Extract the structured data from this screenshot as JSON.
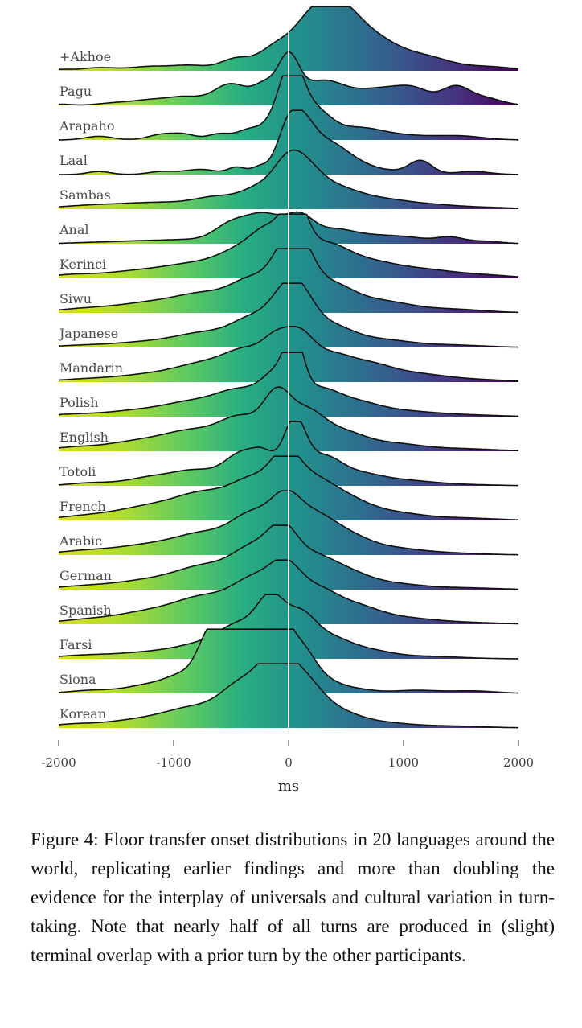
{
  "chart_data": {
    "type": "ridgeline",
    "xlabel": "ms",
    "xlim": [
      -2000,
      2000
    ],
    "xticks": [
      -2000,
      -1000,
      0,
      1000,
      2000
    ],
    "xtick_labels": [
      "-2000",
      "-1000",
      "0",
      "1000",
      "2000"
    ],
    "reference_line_x": 0,
    "fill_colormap": "viridis (x: -2000 yellow to 2000 dark purple)",
    "colors": {
      "yellow": "#d8e219",
      "green": "#35b779",
      "teal": "#31688e",
      "purple": "#440154",
      "outline": "#111111",
      "zero_line": "#e6e6e6"
    },
    "series": [
      {
        "name": "+Akhoe",
        "peaks": [
          [
            -2000,
            0.02,
            100
          ],
          [
            -1650,
            0.05,
            150
          ],
          [
            -1200,
            0.07,
            180
          ],
          [
            -850,
            0.08,
            150
          ],
          [
            -450,
            0.2,
            140
          ],
          [
            -150,
            0.2,
            120
          ],
          [
            250,
            0.95,
            230
          ],
          [
            500,
            0.45,
            180
          ],
          [
            800,
            0.4,
            200
          ],
          [
            1200,
            0.2,
            200
          ],
          [
            1700,
            0.07,
            250
          ]
        ]
      },
      {
        "name": "Pagu",
        "peaks": [
          [
            -2000,
            0.02,
            100
          ],
          [
            -1500,
            0.04,
            150
          ],
          [
            -1200,
            0.08,
            150
          ],
          [
            -900,
            0.13,
            150
          ],
          [
            -500,
            0.35,
            150
          ],
          [
            -200,
            0.3,
            100
          ],
          [
            0,
            0.7,
            90
          ],
          [
            300,
            0.4,
            200
          ],
          [
            800,
            0.25,
            200
          ],
          [
            1100,
            0.22,
            150
          ],
          [
            1450,
            0.28,
            120
          ],
          [
            1700,
            0.12,
            150
          ]
        ]
      },
      {
        "name": "Arapaho",
        "peaks": [
          [
            -1650,
            0.06,
            120
          ],
          [
            -1100,
            0.09,
            120
          ],
          [
            -900,
            0.08,
            100
          ],
          [
            -600,
            0.1,
            100
          ],
          [
            -350,
            0.15,
            100
          ],
          [
            -100,
            0.3,
            120
          ],
          [
            30,
            1.0,
            100
          ],
          [
            230,
            0.45,
            140
          ],
          [
            600,
            0.18,
            200
          ],
          [
            1000,
            0.07,
            250
          ],
          [
            1500,
            0.06,
            200
          ]
        ]
      },
      {
        "name": "Laal",
        "peaks": [
          [
            -1650,
            0.05,
            100
          ],
          [
            -1100,
            0.05,
            120
          ],
          [
            -850,
            0.05,
            100
          ],
          [
            -700,
            0.06,
            100
          ],
          [
            -450,
            0.12,
            80
          ],
          [
            -250,
            0.12,
            70
          ],
          [
            -30,
            0.4,
            90
          ],
          [
            100,
            0.82,
            120
          ],
          [
            350,
            0.45,
            150
          ],
          [
            600,
            0.15,
            150
          ],
          [
            900,
            0.05,
            150
          ],
          [
            1150,
            0.22,
            100
          ],
          [
            1600,
            0.05,
            150
          ]
        ]
      },
      {
        "name": "Sambas",
        "peaks": [
          [
            -1700,
            0.06,
            300
          ],
          [
            -1100,
            0.1,
            300
          ],
          [
            -600,
            0.18,
            200
          ],
          [
            -250,
            0.3,
            150
          ],
          [
            -30,
            0.4,
            120
          ],
          [
            120,
            0.6,
            150
          ],
          [
            400,
            0.3,
            200
          ],
          [
            800,
            0.15,
            250
          ],
          [
            1300,
            0.06,
            250
          ],
          [
            1800,
            0.02,
            200
          ]
        ]
      },
      {
        "name": "Anal",
        "peaks": [
          [
            -1700,
            0.02,
            200
          ],
          [
            -1300,
            0.04,
            200
          ],
          [
            -900,
            0.06,
            200
          ],
          [
            -500,
            0.3,
            150
          ],
          [
            -200,
            0.45,
            160
          ],
          [
            100,
            0.38,
            120
          ],
          [
            400,
            0.22,
            180
          ],
          [
            800,
            0.12,
            200
          ],
          [
            1100,
            0.06,
            150
          ],
          [
            1400,
            0.1,
            120
          ],
          [
            1700,
            0.04,
            150
          ]
        ]
      },
      {
        "name": "Kerinci",
        "peaks": [
          [
            -1900,
            0.05,
            200
          ],
          [
            -1300,
            0.12,
            300
          ],
          [
            -800,
            0.2,
            250
          ],
          [
            -400,
            0.4,
            200
          ],
          [
            -150,
            0.6,
            150
          ],
          [
            60,
            0.9,
            100
          ],
          [
            300,
            0.5,
            200
          ],
          [
            700,
            0.25,
            250
          ],
          [
            1200,
            0.12,
            250
          ],
          [
            1700,
            0.05,
            250
          ]
        ]
      },
      {
        "name": "Siwu",
        "peaks": [
          [
            -1800,
            0.06,
            250
          ],
          [
            -1200,
            0.16,
            300
          ],
          [
            -700,
            0.28,
            250
          ],
          [
            -300,
            0.48,
            180
          ],
          [
            -50,
            0.6,
            120
          ],
          [
            100,
            0.8,
            120
          ],
          [
            350,
            0.45,
            200
          ],
          [
            800,
            0.18,
            250
          ],
          [
            1400,
            0.06,
            300
          ]
        ]
      },
      {
        "name": "Japanese",
        "peaks": [
          [
            -1800,
            0.03,
            250
          ],
          [
            -1200,
            0.09,
            300
          ],
          [
            -700,
            0.22,
            250
          ],
          [
            -300,
            0.42,
            180
          ],
          [
            -50,
            0.52,
            130
          ],
          [
            100,
            0.62,
            130
          ],
          [
            350,
            0.34,
            200
          ],
          [
            800,
            0.12,
            250
          ],
          [
            1400,
            0.04,
            300
          ]
        ]
      },
      {
        "name": "Mandarin",
        "peaks": [
          [
            -1800,
            0.04,
            250
          ],
          [
            -1200,
            0.12,
            300
          ],
          [
            -700,
            0.28,
            250
          ],
          [
            -350,
            0.42,
            180
          ],
          [
            -100,
            0.52,
            120
          ],
          [
            100,
            0.58,
            120
          ],
          [
            350,
            0.4,
            180
          ],
          [
            700,
            0.25,
            200
          ],
          [
            1100,
            0.12,
            250
          ],
          [
            1600,
            0.04,
            300
          ]
        ]
      },
      {
        "name": "Polish",
        "peaks": [
          [
            -1900,
            0.03,
            200
          ],
          [
            -1300,
            0.1,
            300
          ],
          [
            -800,
            0.22,
            250
          ],
          [
            -400,
            0.38,
            200
          ],
          [
            -100,
            0.55,
            130
          ],
          [
            50,
            0.85,
            80
          ],
          [
            250,
            0.42,
            180
          ],
          [
            600,
            0.2,
            200
          ],
          [
            1000,
            0.08,
            250
          ],
          [
            1500,
            0.03,
            300
          ]
        ]
      },
      {
        "name": "English",
        "peaks": [
          [
            -1900,
            0.05,
            200
          ],
          [
            -1300,
            0.16,
            300
          ],
          [
            -800,
            0.3,
            250
          ],
          [
            -400,
            0.48,
            180
          ],
          [
            -100,
            0.78,
            120
          ],
          [
            150,
            0.55,
            150
          ],
          [
            450,
            0.3,
            200
          ],
          [
            900,
            0.12,
            250
          ],
          [
            1500,
            0.04,
            300
          ]
        ]
      },
      {
        "name": "Totoli",
        "peaks": [
          [
            -1700,
            0.05,
            200
          ],
          [
            -1200,
            0.13,
            200
          ],
          [
            -800,
            0.24,
            200
          ],
          [
            -400,
            0.5,
            150
          ],
          [
            -200,
            0.35,
            100
          ],
          [
            50,
            1.0,
            100
          ],
          [
            300,
            0.42,
            150
          ],
          [
            600,
            0.18,
            200
          ],
          [
            1000,
            0.08,
            250
          ],
          [
            1500,
            0.02,
            300
          ]
        ]
      },
      {
        "name": "French",
        "peaks": [
          [
            -1800,
            0.06,
            250
          ],
          [
            -1200,
            0.22,
            300
          ],
          [
            -700,
            0.4,
            250
          ],
          [
            -300,
            0.55,
            180
          ],
          [
            -30,
            0.75,
            130
          ],
          [
            200,
            0.55,
            180
          ],
          [
            500,
            0.3,
            200
          ],
          [
            900,
            0.12,
            250
          ],
          [
            1500,
            0.04,
            300
          ]
        ]
      },
      {
        "name": "Arabic",
        "peaks": [
          [
            -1800,
            0.06,
            250
          ],
          [
            -1200,
            0.16,
            300
          ],
          [
            -700,
            0.32,
            250
          ],
          [
            -300,
            0.58,
            180
          ],
          [
            -30,
            0.62,
            130
          ],
          [
            200,
            0.55,
            180
          ],
          [
            500,
            0.28,
            200
          ],
          [
            900,
            0.1,
            250
          ],
          [
            1400,
            0.03,
            300
          ]
        ]
      },
      {
        "name": "German",
        "peaks": [
          [
            -1800,
            0.05,
            250
          ],
          [
            -1200,
            0.15,
            300
          ],
          [
            -700,
            0.35,
            250
          ],
          [
            -300,
            0.58,
            180
          ],
          [
            -50,
            0.7,
            130
          ],
          [
            200,
            0.45,
            180
          ],
          [
            500,
            0.25,
            200
          ],
          [
            900,
            0.09,
            250
          ],
          [
            1500,
            0.03,
            300
          ]
        ]
      },
      {
        "name": "Spanish",
        "peaks": [
          [
            -1800,
            0.06,
            250
          ],
          [
            -1200,
            0.2,
            300
          ],
          [
            -700,
            0.4,
            250
          ],
          [
            -300,
            0.6,
            180
          ],
          [
            -30,
            0.72,
            140
          ],
          [
            250,
            0.5,
            180
          ],
          [
            600,
            0.25,
            200
          ],
          [
            1000,
            0.09,
            250
          ],
          [
            1500,
            0.03,
            300
          ]
        ]
      },
      {
        "name": "Farsi",
        "peaks": [
          [
            -1800,
            0.05,
            250
          ],
          [
            -1200,
            0.1,
            300
          ],
          [
            -700,
            0.22,
            250
          ],
          [
            -400,
            0.45,
            180
          ],
          [
            -150,
            0.8,
            120
          ],
          [
            100,
            0.6,
            130
          ],
          [
            350,
            0.32,
            180
          ],
          [
            700,
            0.12,
            200
          ],
          [
            1200,
            0.04,
            300
          ]
        ]
      },
      {
        "name": "Siona",
        "peaks": [
          [
            -1700,
            0.05,
            200
          ],
          [
            -1200,
            0.14,
            200
          ],
          [
            -900,
            0.26,
            150
          ],
          [
            -700,
            0.55,
            100
          ],
          [
            -500,
            0.95,
            150
          ],
          [
            -300,
            0.92,
            150
          ],
          [
            -100,
            1.0,
            100
          ],
          [
            100,
            0.65,
            120
          ],
          [
            300,
            0.2,
            150
          ],
          [
            600,
            0.06,
            150
          ],
          [
            1100,
            0.05,
            200
          ],
          [
            1600,
            0.04,
            200
          ]
        ]
      },
      {
        "name": "Korean",
        "peaks": [
          [
            -1900,
            0.05,
            200
          ],
          [
            -1300,
            0.13,
            300
          ],
          [
            -800,
            0.3,
            250
          ],
          [
            -400,
            0.62,
            180
          ],
          [
            -100,
            1.0,
            150
          ],
          [
            150,
            0.55,
            150
          ],
          [
            400,
            0.25,
            200
          ],
          [
            800,
            0.08,
            250
          ],
          [
            1400,
            0.03,
            300
          ]
        ]
      }
    ]
  },
  "caption": "Figure 4: Floor transfer onset distributions in 20 languages around the world, replicating earlier findings and more than doubling the evidence for the interplay of universals and cultural variation in turn-taking. Note that nearly half of all turns are produced in (slight) terminal overlap with a prior turn by the other participants."
}
